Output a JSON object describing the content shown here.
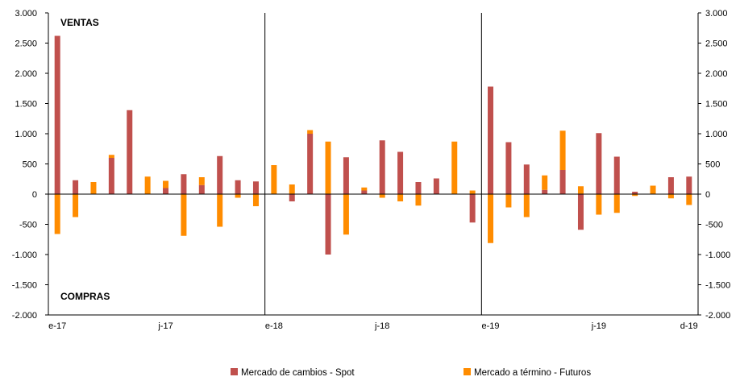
{
  "chart_data": {
    "type": "bar",
    "stacked": true,
    "ylim": [
      -2000,
      3000
    ],
    "yticks": [
      3000,
      2500,
      2000,
      1500,
      1000,
      500,
      0,
      -500,
      -1000,
      -1500,
      -2000
    ],
    "ytick_labels": [
      "3.000",
      "2.500",
      "2.000",
      "1.500",
      "1.000",
      "500",
      "0",
      "-500",
      "-1.000",
      "-1.500",
      "-2.000"
    ],
    "x_tick_labels": [
      {
        "index": 0,
        "label": "e-17"
      },
      {
        "index": 6,
        "label": "j-17"
      },
      {
        "index": 12,
        "label": "e-18"
      },
      {
        "index": 18,
        "label": "j-18"
      },
      {
        "index": 24,
        "label": "e-19"
      },
      {
        "index": 30,
        "label": "j-19"
      },
      {
        "index": 35,
        "label": "d-19"
      }
    ],
    "year_separators_after_index": [
      11,
      23
    ],
    "annotations": {
      "top_left": "VENTAS",
      "bottom_left": "COMPRAS"
    },
    "legend_position": "bottom",
    "series": [
      {
        "name": "Mercado de cambios - Spot",
        "color": "#c0504d",
        "values": [
          2620,
          230,
          0,
          600,
          1390,
          0,
          100,
          330,
          150,
          630,
          230,
          210,
          0,
          -120,
          1000,
          -1000,
          610,
          60,
          890,
          700,
          200,
          260,
          0,
          -470,
          1780,
          860,
          490,
          70,
          400,
          -590,
          1010,
          620,
          40,
          0,
          280,
          290
        ]
      },
      {
        "name": "Mercado a término - Futuros",
        "color": "#ff8c00",
        "values": [
          -660,
          -380,
          200,
          50,
          0,
          290,
          120,
          -690,
          130,
          -540,
          -60,
          -200,
          480,
          160,
          60,
          870,
          -670,
          50,
          -60,
          -120,
          -190,
          0,
          870,
          60,
          -810,
          -220,
          -380,
          240,
          650,
          130,
          -340,
          -310,
          -30,
          140,
          -70,
          -180
        ]
      }
    ]
  }
}
